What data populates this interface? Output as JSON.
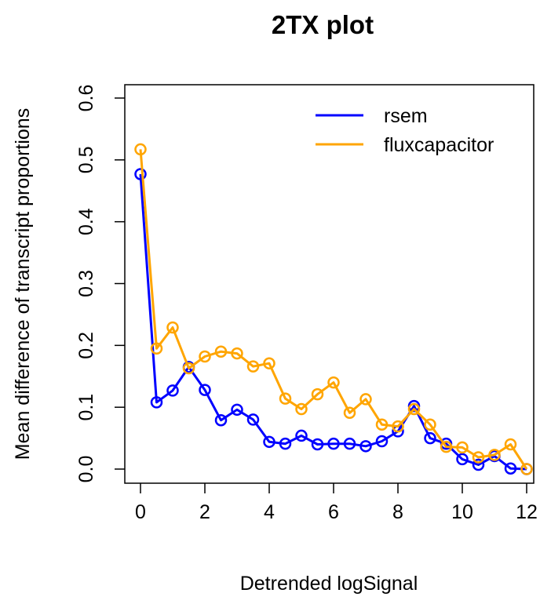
{
  "chart_data": {
    "type": "line",
    "title": "2TX plot",
    "xlabel": "Detrended logSignal",
    "ylabel": "Mean difference of transcript proportions",
    "xlim": [
      0,
      12
    ],
    "ylim": [
      0,
      0.6
    ],
    "x_ticks": [
      "0",
      "2",
      "4",
      "6",
      "8",
      "10",
      "12"
    ],
    "y_ticks": [
      "0.0",
      "0.1",
      "0.2",
      "0.3",
      "0.4",
      "0.5",
      "0.6"
    ],
    "grid": false,
    "legend_position": "top-right",
    "x": [
      0,
      0.5,
      1,
      1.5,
      2,
      2.5,
      3,
      3.5,
      4,
      4.5,
      5,
      5.5,
      6,
      6.5,
      7,
      7.5,
      8,
      8.5,
      9,
      9.5,
      10,
      10.5,
      11,
      11.5,
      12
    ],
    "series": [
      {
        "name": "rsem",
        "color": "#0000ff",
        "marker": "open-circle",
        "values": [
          0.477,
          0.108,
          0.127,
          0.165,
          0.128,
          0.079,
          0.096,
          0.08,
          0.044,
          0.041,
          0.054,
          0.04,
          0.041,
          0.041,
          0.037,
          0.045,
          0.061,
          0.102,
          0.05,
          0.041,
          0.016,
          0.007,
          0.021,
          0.001,
          0.0
        ]
      },
      {
        "name": "fluxcapacitor",
        "color": "#ffa500",
        "marker": "open-circle",
        "values": [
          0.517,
          0.195,
          0.229,
          0.163,
          0.182,
          0.19,
          0.187,
          0.166,
          0.171,
          0.114,
          0.097,
          0.121,
          0.14,
          0.091,
          0.113,
          0.072,
          0.069,
          0.097,
          0.072,
          0.036,
          0.035,
          0.019,
          0.023,
          0.04,
          0.0
        ]
      }
    ]
  }
}
